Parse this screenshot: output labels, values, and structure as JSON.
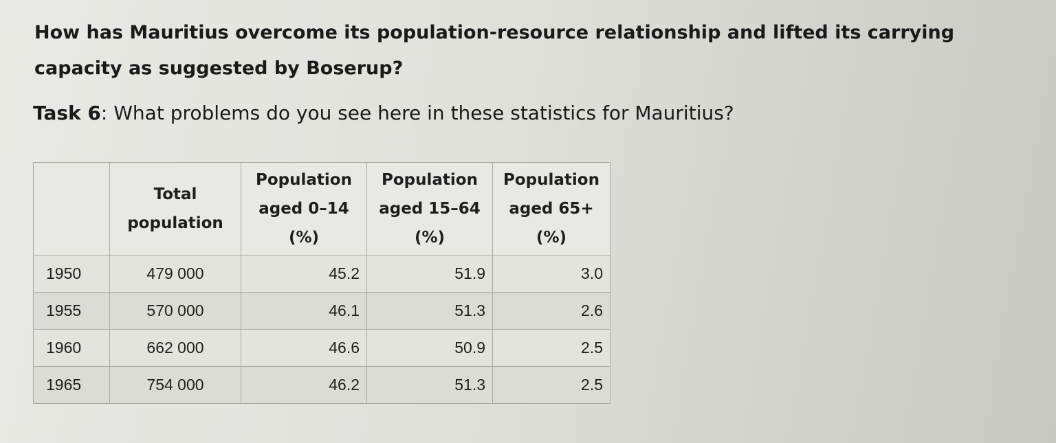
{
  "question": "How has Mauritius overcome its population-resource relationship and lifted its carrying capacity as suggested by Boserup?",
  "task": {
    "label": "Task 6",
    "separator": ": ",
    "text": "What problems do you see here in these statistics for Mauritius?"
  },
  "table": {
    "headers": {
      "total": [
        "Total",
        "population"
      ],
      "aged_0_14": [
        "Population",
        "aged 0–14",
        "(%)"
      ],
      "aged_15_64": [
        "Population",
        "aged 15–64",
        "(%)"
      ],
      "aged_65_plus": [
        "Population",
        "aged 65+",
        "(%)"
      ]
    },
    "rows": [
      {
        "year": "1950",
        "total": "479 000",
        "aged_0_14": "45.2",
        "aged_15_64": "51.9",
        "aged_65_plus": "3.0"
      },
      {
        "year": "1955",
        "total": "570 000",
        "aged_0_14": "46.1",
        "aged_15_64": "51.3",
        "aged_65_plus": "2.6"
      },
      {
        "year": "1960",
        "total": "662 000",
        "aged_0_14": "46.6",
        "aged_15_64": "50.9",
        "aged_65_plus": "2.5"
      },
      {
        "year": "1965",
        "total": "754 000",
        "aged_0_14": "46.2",
        "aged_15_64": "51.3",
        "aged_65_plus": "2.5"
      }
    ]
  }
}
